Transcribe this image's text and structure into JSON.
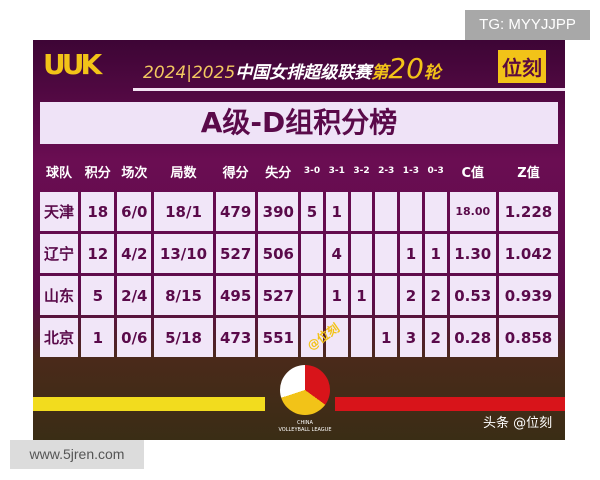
{
  "watermarks": {
    "tg": "TG: MYYJJPP",
    "site": "www.5jren.com",
    "toutiao": "头条 @位刻",
    "center": "@位刻"
  },
  "header": {
    "logo": "UUK",
    "season": "2024|2025",
    "league": "中国女排超级联赛",
    "round_prefix": "第",
    "round_num": "20",
    "round_suffix": "轮",
    "brand": "位刻"
  },
  "title": "A级-D组积分榜",
  "table": {
    "columns": [
      "球队",
      "积分",
      "场次",
      "局数",
      "得分",
      "失分",
      "3-0",
      "3-1",
      "3-2",
      "2-3",
      "1-3",
      "0-3",
      "C值",
      "Z值"
    ],
    "rows": [
      [
        "天津",
        "18",
        "6/0",
        "18/1",
        "479",
        "390",
        "5",
        "1",
        "",
        "",
        "",
        "",
        "18.00",
        "1.228"
      ],
      [
        "辽宁",
        "12",
        "4/2",
        "13/10",
        "527",
        "506",
        "",
        "4",
        "",
        "",
        "1",
        "1",
        "1.30",
        "1.042"
      ],
      [
        "山东",
        "5",
        "2/4",
        "8/15",
        "495",
        "527",
        "",
        "1",
        "1",
        "",
        "2",
        "2",
        "0.53",
        "0.939"
      ],
      [
        "北京",
        "1",
        "0/6",
        "5/18",
        "473",
        "551",
        "",
        "",
        "",
        "1",
        "3",
        "2",
        "0.28",
        "0.858"
      ]
    ]
  },
  "footer": {
    "league_logo_line1": "CHINA",
    "league_logo_line2": "VOLLEYBALL LEAGUE"
  }
}
